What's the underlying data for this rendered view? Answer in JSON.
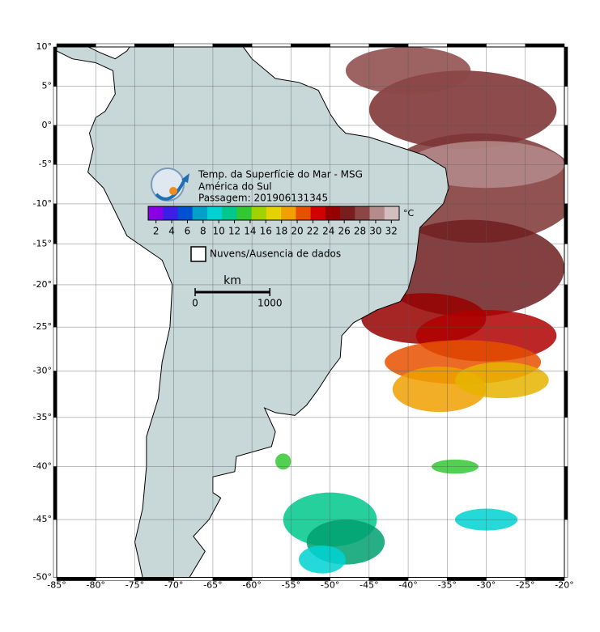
{
  "map": {
    "title": "Temp. da Superfície do Mar - MSG",
    "subtitle": "América do Sul",
    "pass": "Passagem: 201906131345",
    "colorbar": {
      "unit": "°C",
      "lim": [
        1,
        33
      ],
      "ticks": [
        2,
        4,
        6,
        8,
        10,
        12,
        14,
        16,
        18,
        20,
        22,
        24,
        26,
        28,
        30,
        32
      ],
      "colors": [
        "#8a00e6",
        "#3c1ee6",
        "#0050d2",
        "#00a0c8",
        "#00d2d2",
        "#00c88c",
        "#32c832",
        "#a0d200",
        "#e6d200",
        "#f0a000",
        "#e65000",
        "#d20000",
        "#960000",
        "#781e1e",
        "#8c4646",
        "#b48c8c",
        "#d2bebe"
      ]
    },
    "legend": "Nuvens/Ausencia de dados",
    "scalebar": {
      "unit": "km",
      "ticks": [
        0,
        1000
      ]
    },
    "xlim": [
      -85,
      -20
    ],
    "ylim": [
      -50,
      10
    ],
    "grid": true,
    "xticks": [
      {
        "value": -85,
        "label": "-85°"
      },
      {
        "value": -80,
        "label": "-80°"
      },
      {
        "value": -75,
        "label": "-75°"
      },
      {
        "value": -70,
        "label": "-70°"
      },
      {
        "value": -65,
        "label": "-65°"
      },
      {
        "value": -60,
        "label": "-60°"
      },
      {
        "value": -55,
        "label": "-55°"
      },
      {
        "value": -50,
        "label": "-50°"
      },
      {
        "value": -45,
        "label": "-45°"
      },
      {
        "value": -40,
        "label": "-40°"
      },
      {
        "value": -35,
        "label": "-35°"
      },
      {
        "value": -30,
        "label": "-30°"
      },
      {
        "value": -25,
        "label": "-25°"
      },
      {
        "value": -20,
        "label": "-20°"
      }
    ],
    "yticks": [
      {
        "value": 10,
        "label": "10°"
      },
      {
        "value": 5,
        "label": "5°"
      },
      {
        "value": 0,
        "label": "0°"
      },
      {
        "value": -5,
        "label": "-5°"
      },
      {
        "value": -10,
        "label": "-10°"
      },
      {
        "value": -15,
        "label": "-15°"
      },
      {
        "value": -20,
        "label": "-20°"
      },
      {
        "value": -25,
        "label": "-25°"
      },
      {
        "value": -30,
        "label": "-30°"
      },
      {
        "value": -35,
        "label": "-35°"
      },
      {
        "value": -40,
        "label": "-40°"
      },
      {
        "value": -45,
        "label": "-45°"
      },
      {
        "value": -50,
        "label": "-50°"
      }
    ]
  }
}
